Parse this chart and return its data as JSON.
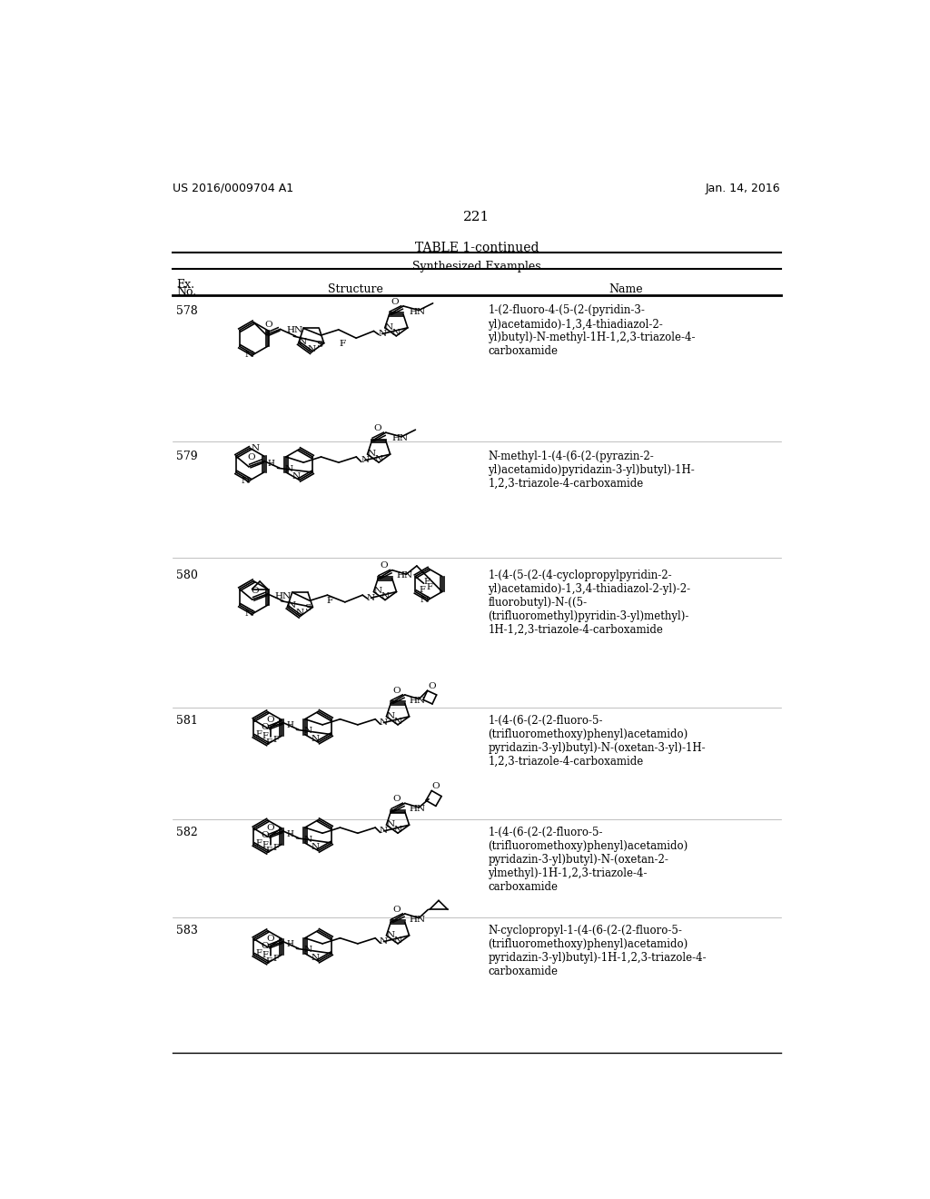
{
  "page_num": "221",
  "left_header": "US 2016/0009704 A1",
  "right_header": "Jan. 14, 2016",
  "table_title": "TABLE 1-continued",
  "subtitle": "Synthesized Examples",
  "background_color": "#ffffff",
  "rows": [
    {
      "ex_no": "578",
      "name": "1-(2-fluoro-4-(5-(2-(pyridin-3-\nyl)acetamido)-1,3,4-thiadiazol-2-\nyl)butyl)-N-methyl-1H-1,2,3-triazole-4-\ncarboxamide"
    },
    {
      "ex_no": "579",
      "name": "N-methyl-1-(4-(6-(2-(pyrazin-2-\nyl)acetamido)pyridazin-3-yl)butyl)-1H-\n1,2,3-triazole-4-carboxamide"
    },
    {
      "ex_no": "580",
      "name": "1-(4-(5-(2-(4-cyclopropylpyridin-2-\nyl)acetamido)-1,3,4-thiadiazol-2-yl)-2-\nfluorobutyl)-N-((5-\n(trifluoromethyl)pyridin-3-yl)methyl)-\n1H-1,2,3-triazole-4-carboxamide"
    },
    {
      "ex_no": "581",
      "name": "1-(4-(6-(2-(2-fluoro-5-\n(trifluoromethoxy)phenyl)acetamido)\npyridazin-3-yl)butyl)-N-(oxetan-3-yl)-1H-\n1,2,3-triazole-4-carboxamide"
    },
    {
      "ex_no": "582",
      "name": "1-(4-(6-(2-(2-fluoro-5-\n(trifluoromethoxy)phenyl)acetamido)\npyridazin-3-yl)butyl)-N-(oxetan-2-\nylmethyl)-1H-1,2,3-triazole-4-\ncarboxamide"
    },
    {
      "ex_no": "583",
      "name": "N-cyclopropyl-1-(4-(6-(2-(2-fluoro-5-\n(trifluoromethoxy)phenyl)acetamido)\npyridazin-3-yl)butyl)-1H-1,2,3-triazole-4-\ncarboxamide"
    }
  ]
}
